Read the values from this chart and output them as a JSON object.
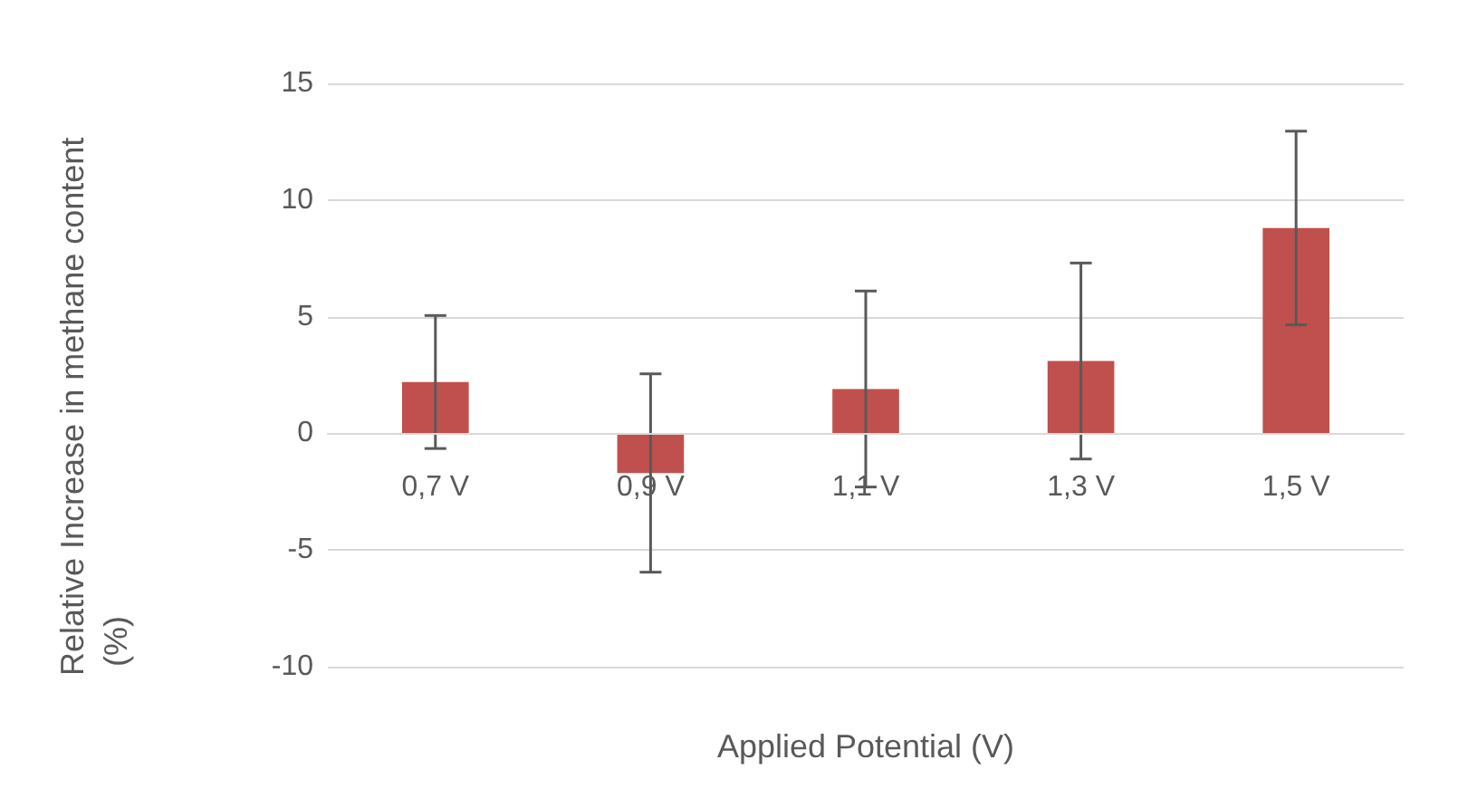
{
  "chart_data": {
    "type": "bar",
    "xlabel": "Applied Potential (V)",
    "ylabel": "Relative Increase in methane content (%)",
    "categories": [
      "0,7 V",
      "0,9 V",
      "1,1 V",
      "1,3 V",
      "1,5 V"
    ],
    "values": [
      2.2,
      -1.7,
      1.9,
      3.1,
      8.8
    ],
    "errors": [
      2.85,
      4.25,
      4.2,
      4.2,
      4.15
    ],
    "color": "#c0504d",
    "ylim": [
      -10,
      15
    ],
    "yticks": [
      -10,
      -5,
      0,
      5,
      10,
      15
    ],
    "grid": "y"
  }
}
